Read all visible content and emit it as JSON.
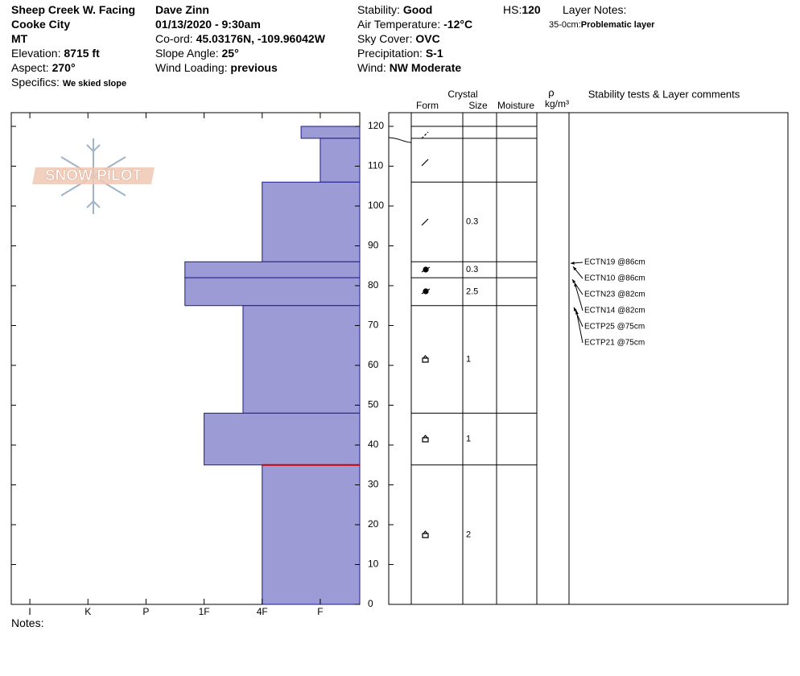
{
  "header": {
    "location": [
      "Sheep Creek W. Facing",
      "Cooke City",
      "MT"
    ],
    "elevation": {
      "label": "Elevation:",
      "value": "8715 ft"
    },
    "aspect": {
      "label": "Aspect:",
      "value": "270°"
    },
    "specifics": {
      "label": "Specifics:",
      "value": "We skied slope"
    },
    "observer": "Dave Zinn",
    "datetime": "01/13/2020 - 9:30am",
    "coord": {
      "label": "Co-ord:",
      "value": "45.03176N, -109.96042W"
    },
    "slope_angle": {
      "label": "Slope Angle:",
      "value": "25°"
    },
    "wind_loading": {
      "label": "Wind Loading:",
      "value": "previous"
    },
    "stability": {
      "label": "Stability:",
      "value": "Good"
    },
    "air_temperature": {
      "label": "Air Temperature:",
      "value": "-12°C"
    },
    "sky_cover": {
      "label": "Sky Cover:",
      "value": "OVC"
    },
    "precipitation": {
      "label": "Precipitation:",
      "value": "S-1"
    },
    "wind": {
      "label": "Wind:",
      "value": "NW Moderate"
    },
    "hs": {
      "label": "HS:",
      "value": 120
    },
    "layer_notes": {
      "label": "Layer Notes:",
      "range": "35-0cm:",
      "text": "Problematic layer",
      "top": 35
    }
  },
  "logo": "SNOW PILOT",
  "notes": "Notes:",
  "columns": {
    "crystal": "Crystal",
    "form": "Form",
    "size": "Size",
    "moisture": "Moisture",
    "density": "ρ",
    "density_unit": "kg/m³",
    "comments": "Stability tests & Layer comments"
  },
  "chart_data": {
    "type": "bar",
    "color": "#9c9bd6",
    "edge_color": "#1c1c8a",
    "highlight_color": "#cc0000",
    "ylim": [
      0,
      120
    ],
    "yticks": [
      0,
      10,
      20,
      30,
      40,
      50,
      60,
      70,
      80,
      90,
      100,
      110,
      120
    ],
    "xlim": [
      6.32,
      0.32
    ],
    "xticks": [
      {
        "value": 6,
        "label": "I"
      },
      {
        "value": 5,
        "label": "K"
      },
      {
        "value": 4,
        "label": "P"
      },
      {
        "value": 3,
        "label": "1F"
      },
      {
        "value": 2,
        "label": "4F"
      },
      {
        "value": 1,
        "label": "F"
      }
    ],
    "layers": {
      "top": [
        120,
        117,
        106,
        86,
        82,
        75,
        48,
        35
      ],
      "bottom": [
        117,
        106,
        86,
        82,
        75,
        48,
        35,
        0
      ],
      "hardness": [
        1.33,
        1,
        2,
        3.33,
        3.33,
        2.33,
        3,
        2
      ],
      "size": [
        null,
        null,
        0.3,
        0.3,
        2.5,
        1,
        1,
        2
      ]
    },
    "stability_tests": [
      {
        "label": "ECTN19 @86cm",
        "depth": 86
      },
      {
        "label": "ECTN10 @86cm",
        "depth": 86
      },
      {
        "label": "ECTN23 @82cm",
        "depth": 82
      },
      {
        "label": "ECTN14 @82cm",
        "depth": 82
      },
      {
        "label": "ECTP25 @75cm",
        "depth": 75
      },
      {
        "label": "ECTP21 @75cm",
        "depth": 75
      }
    ]
  }
}
